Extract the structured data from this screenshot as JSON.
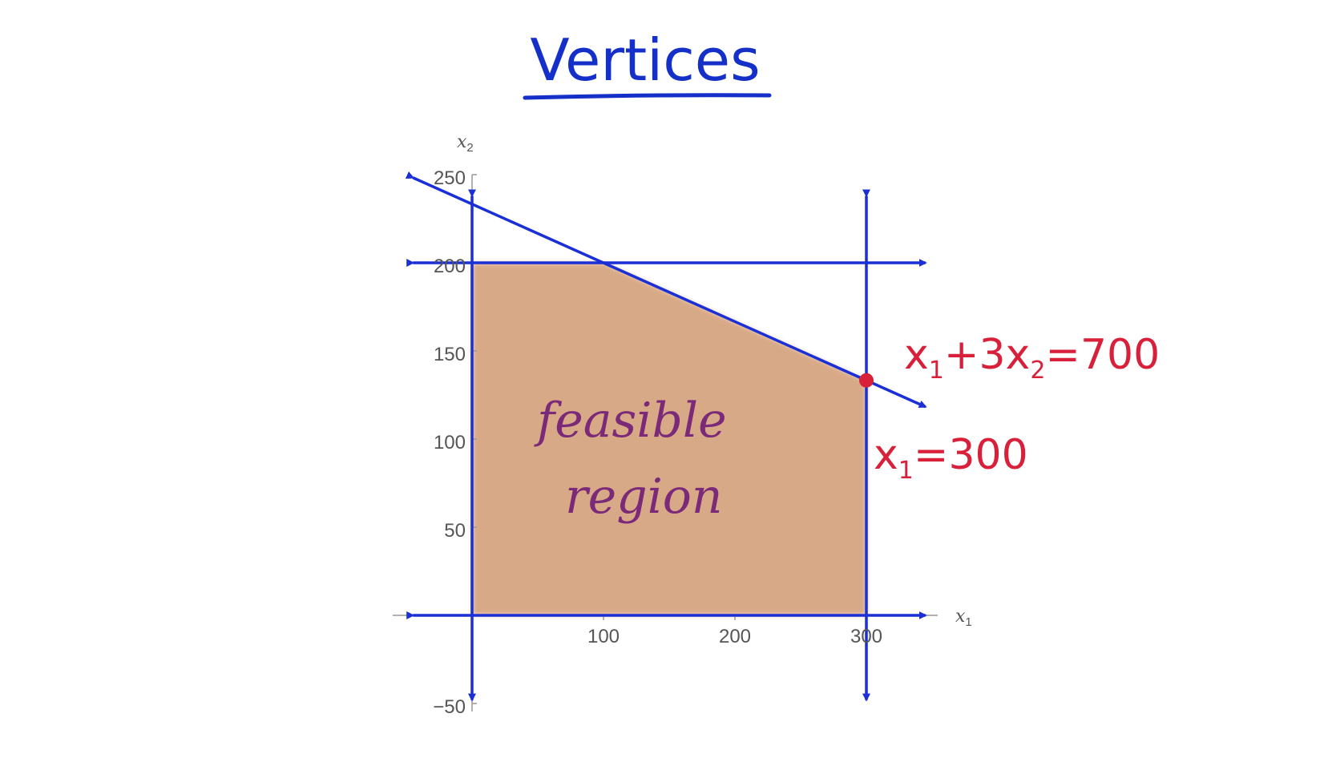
{
  "title": "Vertices",
  "colors": {
    "title": "#1530c8",
    "lines": "#1a2fd6",
    "region": "#d4a07a",
    "annotation_red": "#d8203a",
    "annotation_purple": "#7a2a78",
    "axis_text": "#555555"
  },
  "axes": {
    "x_label": "x",
    "x_sub": "1",
    "y_label": "x",
    "y_sub": "2",
    "x_ticks": [
      "100",
      "200",
      "300"
    ],
    "y_ticks": [
      "250",
      "200",
      "150",
      "100",
      "50",
      "−50"
    ]
  },
  "region_label": {
    "line1": "feasible",
    "line2": "region"
  },
  "annotations": {
    "constraint_a": {
      "pre": "x",
      "sub1": "1",
      "mid": "+3x",
      "sub2": "2",
      "post": "=700"
    },
    "constraint_b": {
      "pre": "x",
      "sub1": "1",
      "post": "=300"
    }
  },
  "chart_data": {
    "type": "area",
    "xlim": [
      -50,
      350
    ],
    "ylim": [
      -50,
      250
    ],
    "feasible_region": [
      [
        0,
        0
      ],
      [
        0,
        200
      ],
      [
        100,
        200
      ],
      [
        300,
        133.3
      ],
      [
        300,
        0
      ]
    ],
    "lines": [
      {
        "equation": "x1+3x2=700"
      },
      {
        "equation": "x1=300"
      },
      {
        "equation": "x2=200"
      },
      {
        "equation": "x1=0"
      },
      {
        "equation": "x2=0"
      }
    ],
    "highlighted_point": [
      300,
      133.3
    ]
  }
}
